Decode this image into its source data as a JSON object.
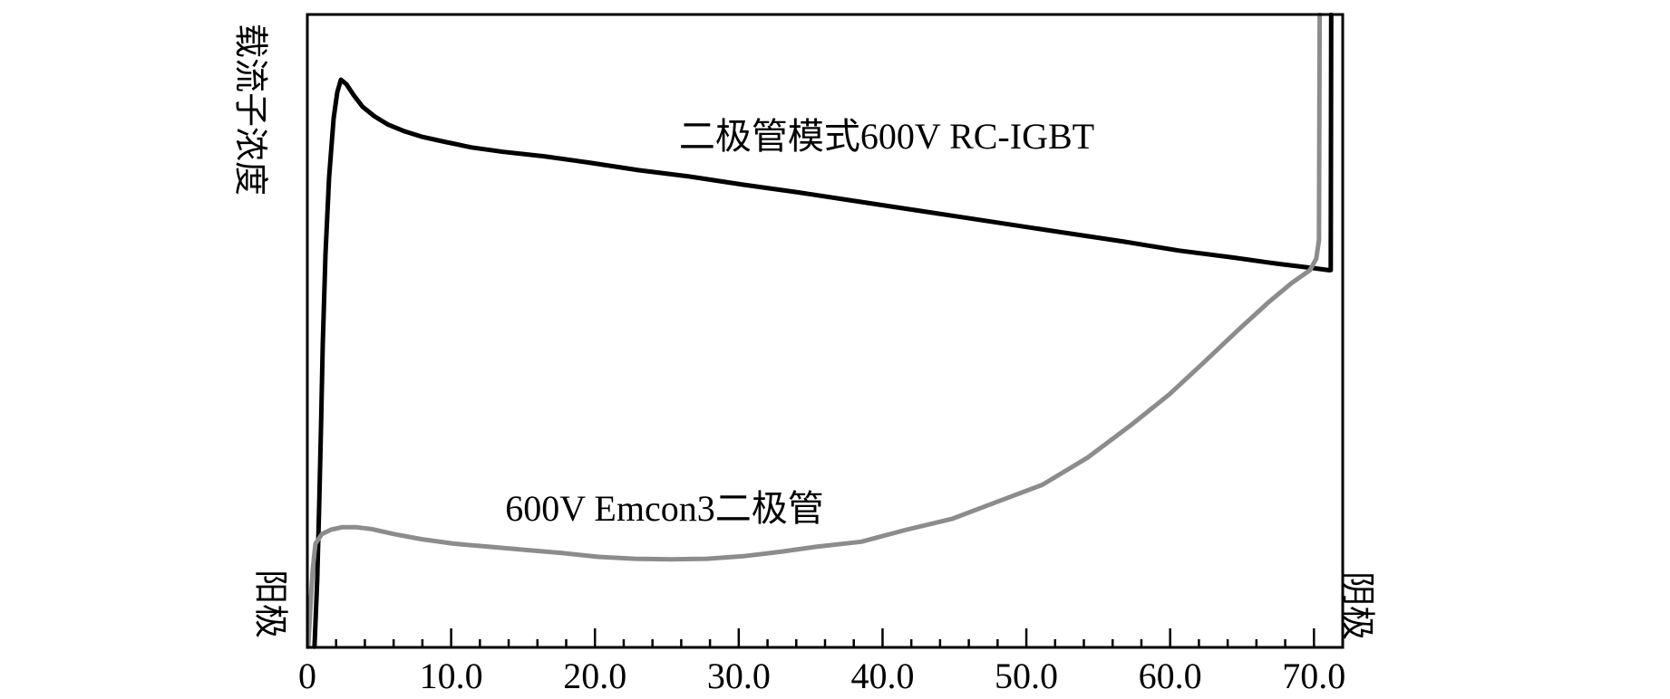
{
  "chart_data": {
    "type": "line",
    "title": "",
    "ylabel": "载流子浓度",
    "xlabel": "",
    "grid": false,
    "legend": "inline-annotations",
    "x_axis": {
      "min": 0,
      "max": 72,
      "major_ticks": [
        0,
        10,
        20,
        30,
        40,
        50,
        60,
        70
      ],
      "major_tick_labels": [
        "0",
        "10.0",
        "20.0",
        "30.0",
        "40.0",
        "50.0",
        "60.0",
        "70.0"
      ],
      "minor_tick_step": 2,
      "left_end_label": "阳极",
      "right_end_label": "阴极"
    },
    "y_axis": {
      "min": 0,
      "max": 100,
      "ticks": [],
      "note": "qualitative axis, no numeric scale shown"
    },
    "series": [
      {
        "name": "二极管模式600V RC-IGBT",
        "color": "#000000",
        "line_width": 5,
        "points": [
          [
            0.5,
            0.1
          ],
          [
            0.69,
            10.7
          ],
          [
            0.82,
            22.1
          ],
          [
            0.95,
            35.0
          ],
          [
            1.07,
            47.9
          ],
          [
            1.26,
            62.1
          ],
          [
            1.51,
            74.3
          ],
          [
            1.83,
            83.6
          ],
          [
            2.08,
            87.7
          ],
          [
            2.33,
            89.7
          ],
          [
            2.71,
            89.0
          ],
          [
            3.21,
            87.3
          ],
          [
            3.85,
            85.4
          ],
          [
            4.67,
            83.9
          ],
          [
            5.61,
            82.6
          ],
          [
            6.68,
            81.6
          ],
          [
            7.94,
            80.7
          ],
          [
            9.52,
            79.9
          ],
          [
            11.41,
            79.0
          ],
          [
            13.62,
            78.3
          ],
          [
            16.46,
            77.6
          ],
          [
            19.61,
            76.6
          ],
          [
            23.07,
            75.4
          ],
          [
            26.54,
            74.4
          ],
          [
            30.32,
            73.1
          ],
          [
            34.1,
            71.9
          ],
          [
            37.88,
            70.6
          ],
          [
            41.67,
            69.3
          ],
          [
            45.45,
            68.0
          ],
          [
            49.23,
            66.7
          ],
          [
            53.01,
            65.4
          ],
          [
            56.8,
            64.1
          ],
          [
            60.58,
            62.7
          ],
          [
            64.36,
            61.6
          ],
          [
            67.51,
            60.6
          ],
          [
            69.72,
            60.0
          ],
          [
            71.04,
            59.6
          ],
          [
            71.17,
            59.6
          ],
          [
            71.2,
            100
          ]
        ]
      },
      {
        "name": "600V Emcon3二极管",
        "color": "#8c8c8c",
        "line_width": 5,
        "points": [
          [
            0.06,
            0.1
          ],
          [
            0.25,
            7.9
          ],
          [
            0.38,
            12.4
          ],
          [
            0.57,
            16.4
          ],
          [
            1.01,
            17.9
          ],
          [
            1.64,
            18.6
          ],
          [
            2.46,
            19.0
          ],
          [
            3.34,
            19.0
          ],
          [
            4.47,
            18.7
          ],
          [
            6.05,
            17.9
          ],
          [
            7.94,
            17.1
          ],
          [
            10.15,
            16.4
          ],
          [
            12.67,
            15.9
          ],
          [
            15.19,
            15.4
          ],
          [
            17.71,
            14.9
          ],
          [
            20.24,
            14.3
          ],
          [
            22.76,
            14.0
          ],
          [
            25.28,
            13.9
          ],
          [
            27.8,
            14.0
          ],
          [
            30.32,
            14.4
          ],
          [
            32.85,
            15.1
          ],
          [
            35.37,
            15.9
          ],
          [
            38.52,
            16.7
          ],
          [
            41.67,
            18.6
          ],
          [
            44.82,
            20.3
          ],
          [
            47.97,
            23.0
          ],
          [
            51.12,
            25.7
          ],
          [
            54.27,
            30.0
          ],
          [
            57.43,
            35.4
          ],
          [
            59.95,
            40.0
          ],
          [
            62.47,
            45.3
          ],
          [
            64.8,
            50.3
          ],
          [
            66.88,
            54.6
          ],
          [
            68.46,
            57.6
          ],
          [
            69.72,
            59.6
          ],
          [
            70.16,
            61.4
          ],
          [
            70.35,
            64.3
          ],
          [
            70.4,
            100
          ]
        ]
      }
    ],
    "annotations": [
      {
        "text": "二极管模式600V RC-IGBT",
        "x": 40.4,
        "y": 81.1
      },
      {
        "text": "600V Emcon3二极管",
        "x": 24.8,
        "y": 22.4
      }
    ],
    "axis_color": "#000000",
    "background_color": "#ffffff"
  }
}
